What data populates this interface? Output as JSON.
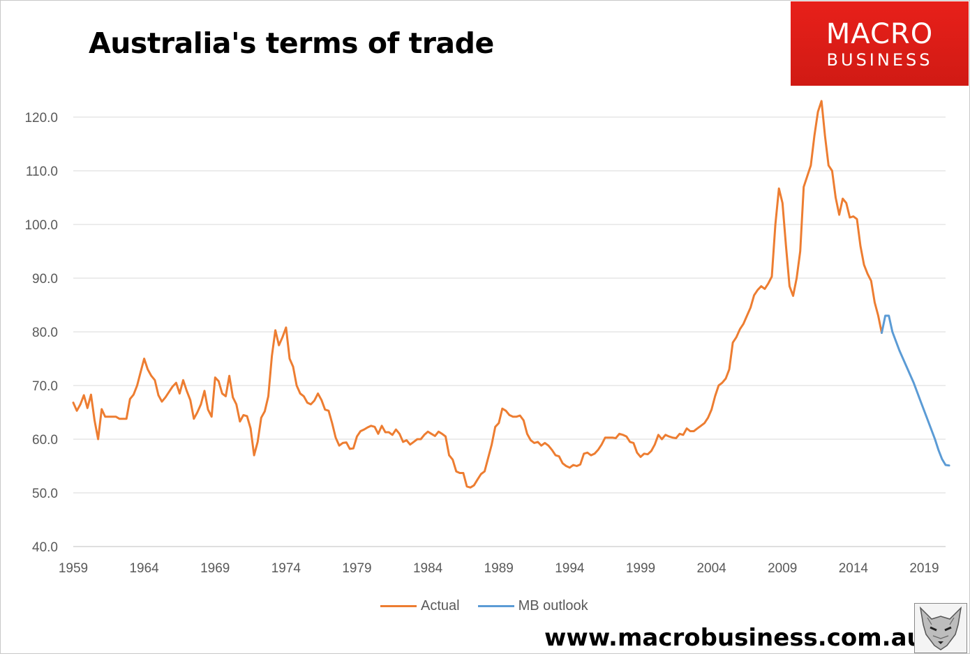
{
  "title": "Australia's terms of trade",
  "logo": {
    "line1": "MACRO",
    "line2": "BUSINESS",
    "color": "#e01e17"
  },
  "url": "www.macrobusiness.com.au",
  "chart_data": {
    "type": "line",
    "title": "Australia's terms of trade",
    "xlabel": "",
    "ylabel": "",
    "ylim": [
      40,
      120
    ],
    "xlim": [
      1959,
      2020
    ],
    "y_ticks": [
      "40.0",
      "50.0",
      "60.0",
      "70.0",
      "80.0",
      "90.0",
      "100.0",
      "110.0",
      "120.0"
    ],
    "x_ticks": [
      "1959",
      "1964",
      "1969",
      "1974",
      "1979",
      "1984",
      "1989",
      "1994",
      "1999",
      "2004",
      "2009",
      "2014",
      "2019"
    ],
    "grid": true,
    "legend_position": "bottom",
    "series": [
      {
        "name": "Actual",
        "color": "#ed7d31",
        "points": [
          [
            1959.0,
            66.8
          ],
          [
            1959.25,
            65.3
          ],
          [
            1959.5,
            66.5
          ],
          [
            1959.75,
            68.2
          ],
          [
            1960.0,
            65.8
          ],
          [
            1960.25,
            68.3
          ],
          [
            1960.5,
            63.5
          ],
          [
            1960.75,
            60.0
          ],
          [
            1961.0,
            65.6
          ],
          [
            1961.25,
            64.2
          ],
          [
            1961.5,
            64.2
          ],
          [
            1961.75,
            64.2
          ],
          [
            1962.0,
            64.2
          ],
          [
            1962.25,
            63.8
          ],
          [
            1962.5,
            63.8
          ],
          [
            1962.75,
            63.8
          ],
          [
            1963.0,
            67.5
          ],
          [
            1963.25,
            68.3
          ],
          [
            1963.5,
            70.0
          ],
          [
            1963.75,
            72.5
          ],
          [
            1964.0,
            75.0
          ],
          [
            1964.25,
            73.0
          ],
          [
            1964.5,
            71.8
          ],
          [
            1964.75,
            71.0
          ],
          [
            1965.0,
            68.2
          ],
          [
            1965.25,
            67.0
          ],
          [
            1965.5,
            67.8
          ],
          [
            1965.75,
            68.8
          ],
          [
            1966.0,
            69.8
          ],
          [
            1966.25,
            70.5
          ],
          [
            1966.5,
            68.5
          ],
          [
            1966.75,
            71.0
          ],
          [
            1967.0,
            69.0
          ],
          [
            1967.25,
            67.3
          ],
          [
            1967.5,
            63.8
          ],
          [
            1967.75,
            65.0
          ],
          [
            1968.0,
            66.5
          ],
          [
            1968.25,
            69.0
          ],
          [
            1968.5,
            65.5
          ],
          [
            1968.75,
            64.2
          ],
          [
            1969.0,
            71.5
          ],
          [
            1969.25,
            70.8
          ],
          [
            1969.5,
            68.5
          ],
          [
            1969.75,
            68.0
          ],
          [
            1970.0,
            71.8
          ],
          [
            1970.25,
            67.8
          ],
          [
            1970.5,
            66.5
          ],
          [
            1970.75,
            63.3
          ],
          [
            1971.0,
            64.5
          ],
          [
            1971.25,
            64.3
          ],
          [
            1971.5,
            62.0
          ],
          [
            1971.75,
            57.0
          ],
          [
            1972.0,
            59.5
          ],
          [
            1972.25,
            64.0
          ],
          [
            1972.5,
            65.2
          ],
          [
            1972.75,
            68.0
          ],
          [
            1973.0,
            75.5
          ],
          [
            1973.25,
            80.3
          ],
          [
            1973.5,
            77.5
          ],
          [
            1973.75,
            79.0
          ],
          [
            1974.0,
            80.8
          ],
          [
            1974.25,
            75.0
          ],
          [
            1974.5,
            73.5
          ],
          [
            1974.75,
            70.0
          ],
          [
            1975.0,
            68.5
          ],
          [
            1975.25,
            68.0
          ],
          [
            1975.5,
            66.8
          ],
          [
            1975.75,
            66.5
          ],
          [
            1976.0,
            67.2
          ],
          [
            1976.25,
            68.5
          ],
          [
            1976.5,
            67.3
          ],
          [
            1976.75,
            65.5
          ],
          [
            1977.0,
            65.3
          ],
          [
            1977.25,
            63.0
          ],
          [
            1977.5,
            60.3
          ],
          [
            1977.75,
            58.8
          ],
          [
            1978.0,
            59.3
          ],
          [
            1978.25,
            59.4
          ],
          [
            1978.5,
            58.2
          ],
          [
            1978.75,
            58.3
          ],
          [
            1979.0,
            60.5
          ],
          [
            1979.25,
            61.5
          ],
          [
            1979.5,
            61.8
          ],
          [
            1979.75,
            62.2
          ],
          [
            1980.0,
            62.5
          ],
          [
            1980.25,
            62.3
          ],
          [
            1980.5,
            61.0
          ],
          [
            1980.75,
            62.5
          ],
          [
            1981.0,
            61.3
          ],
          [
            1981.25,
            61.3
          ],
          [
            1981.5,
            60.8
          ],
          [
            1981.75,
            61.8
          ],
          [
            1982.0,
            61.0
          ],
          [
            1982.25,
            59.5
          ],
          [
            1982.5,
            59.8
          ],
          [
            1982.75,
            59.0
          ],
          [
            1983.0,
            59.5
          ],
          [
            1983.25,
            60.0
          ],
          [
            1983.5,
            60.0
          ],
          [
            1983.75,
            60.8
          ],
          [
            1984.0,
            61.4
          ],
          [
            1984.25,
            61.0
          ],
          [
            1984.5,
            60.6
          ],
          [
            1984.75,
            61.4
          ],
          [
            1985.0,
            61.0
          ],
          [
            1985.25,
            60.5
          ],
          [
            1985.5,
            57.0
          ],
          [
            1985.75,
            56.2
          ],
          [
            1986.0,
            54.0
          ],
          [
            1986.25,
            53.7
          ],
          [
            1986.5,
            53.7
          ],
          [
            1986.75,
            51.2
          ],
          [
            1987.0,
            51.0
          ],
          [
            1987.25,
            51.4
          ],
          [
            1987.5,
            52.5
          ],
          [
            1987.75,
            53.5
          ],
          [
            1988.0,
            54.0
          ],
          [
            1988.25,
            56.5
          ],
          [
            1988.5,
            59.0
          ],
          [
            1988.75,
            62.3
          ],
          [
            1989.0,
            63.0
          ],
          [
            1989.25,
            65.7
          ],
          [
            1989.5,
            65.3
          ],
          [
            1989.75,
            64.5
          ],
          [
            1990.0,
            64.2
          ],
          [
            1990.25,
            64.2
          ],
          [
            1990.5,
            64.4
          ],
          [
            1990.75,
            63.5
          ],
          [
            1991.0,
            61.0
          ],
          [
            1991.25,
            59.8
          ],
          [
            1991.5,
            59.3
          ],
          [
            1991.75,
            59.5
          ],
          [
            1992.0,
            58.8
          ],
          [
            1992.25,
            59.3
          ],
          [
            1992.5,
            58.8
          ],
          [
            1992.75,
            58.0
          ],
          [
            1993.0,
            57.0
          ],
          [
            1993.25,
            56.8
          ],
          [
            1993.5,
            55.5
          ],
          [
            1993.75,
            55.0
          ],
          [
            1994.0,
            54.7
          ],
          [
            1994.25,
            55.2
          ],
          [
            1994.5,
            55.0
          ],
          [
            1994.75,
            55.3
          ],
          [
            1995.0,
            57.3
          ],
          [
            1995.25,
            57.5
          ],
          [
            1995.5,
            57.0
          ],
          [
            1995.75,
            57.3
          ],
          [
            1996.0,
            58.0
          ],
          [
            1996.25,
            59.0
          ],
          [
            1996.5,
            60.3
          ],
          [
            1996.75,
            60.3
          ],
          [
            1997.0,
            60.3
          ],
          [
            1997.25,
            60.2
          ],
          [
            1997.5,
            61.0
          ],
          [
            1997.75,
            60.8
          ],
          [
            1998.0,
            60.5
          ],
          [
            1998.25,
            59.5
          ],
          [
            1998.5,
            59.3
          ],
          [
            1998.75,
            57.5
          ],
          [
            1999.0,
            56.7
          ],
          [
            1999.25,
            57.3
          ],
          [
            1999.5,
            57.2
          ],
          [
            1999.75,
            57.8
          ],
          [
            2000.0,
            59.0
          ],
          [
            2000.25,
            60.8
          ],
          [
            2000.5,
            60.0
          ],
          [
            2000.75,
            60.8
          ],
          [
            2001.0,
            60.5
          ],
          [
            2001.25,
            60.3
          ],
          [
            2001.5,
            60.2
          ],
          [
            2001.75,
            61.0
          ],
          [
            2002.0,
            60.8
          ],
          [
            2002.25,
            62.0
          ],
          [
            2002.5,
            61.5
          ],
          [
            2002.75,
            61.5
          ],
          [
            2003.0,
            62.0
          ],
          [
            2003.25,
            62.5
          ],
          [
            2003.5,
            63.0
          ],
          [
            2003.75,
            64.0
          ],
          [
            2004.0,
            65.5
          ],
          [
            2004.25,
            68.0
          ],
          [
            2004.5,
            70.0
          ],
          [
            2004.75,
            70.5
          ],
          [
            2005.0,
            71.3
          ],
          [
            2005.25,
            73.0
          ],
          [
            2005.5,
            78.0
          ],
          [
            2005.75,
            79.0
          ],
          [
            2006.0,
            80.5
          ],
          [
            2006.25,
            81.5
          ],
          [
            2006.5,
            83.0
          ],
          [
            2006.75,
            84.5
          ],
          [
            2007.0,
            86.8
          ],
          [
            2007.25,
            87.8
          ],
          [
            2007.5,
            88.5
          ],
          [
            2007.75,
            88.0
          ],
          [
            2008.0,
            89.0
          ],
          [
            2008.25,
            90.3
          ],
          [
            2008.5,
            100.0
          ],
          [
            2008.75,
            106.7
          ],
          [
            2009.0,
            104.0
          ],
          [
            2009.25,
            96.0
          ],
          [
            2009.5,
            88.5
          ],
          [
            2009.75,
            86.7
          ],
          [
            2010.0,
            90.0
          ],
          [
            2010.25,
            95.0
          ],
          [
            2010.5,
            107.0
          ],
          [
            2010.75,
            109.0
          ],
          [
            2011.0,
            111.0
          ],
          [
            2011.25,
            116.5
          ],
          [
            2011.5,
            121.0
          ],
          [
            2011.75,
            123.0
          ],
          [
            2012.0,
            116.5
          ],
          [
            2012.25,
            111.0
          ],
          [
            2012.5,
            110.0
          ],
          [
            2012.75,
            105.0
          ],
          [
            2013.0,
            101.8
          ],
          [
            2013.25,
            104.8
          ],
          [
            2013.5,
            104.0
          ],
          [
            2013.75,
            101.3
          ],
          [
            2014.0,
            101.5
          ],
          [
            2014.25,
            101.0
          ],
          [
            2014.5,
            96.0
          ],
          [
            2014.75,
            92.5
          ],
          [
            2015.0,
            90.8
          ],
          [
            2015.25,
            89.5
          ],
          [
            2015.5,
            85.5
          ],
          [
            2015.75,
            83.0
          ],
          [
            2016.0,
            79.8
          ]
        ]
      },
      {
        "name": "MB outlook",
        "color": "#5b9bd5",
        "points": [
          [
            2016.0,
            79.8
          ],
          [
            2016.25,
            83.0
          ],
          [
            2016.5,
            83.0
          ],
          [
            2016.75,
            80.0
          ],
          [
            2017.25,
            76.5
          ],
          [
            2017.75,
            73.5
          ],
          [
            2018.25,
            70.5
          ],
          [
            2018.75,
            67.0
          ],
          [
            2019.25,
            63.5
          ],
          [
            2019.75,
            60.0
          ],
          [
            2020.0,
            58.0
          ],
          [
            2020.25,
            56.3
          ],
          [
            2020.5,
            55.2
          ],
          [
            2020.75,
            55.1
          ]
        ]
      }
    ]
  }
}
